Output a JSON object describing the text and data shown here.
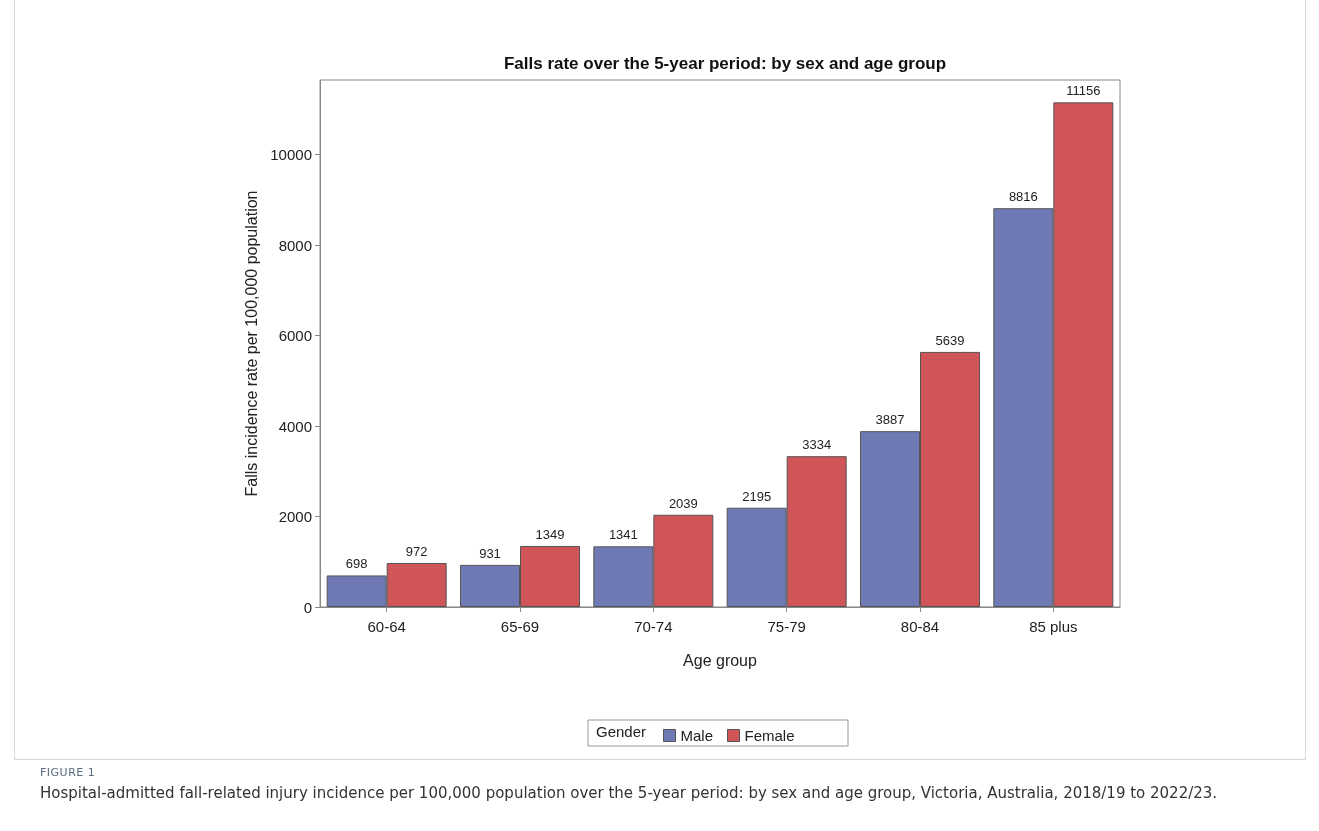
{
  "chart_data": {
    "type": "bar",
    "title": "Falls rate over the 5-year period: by sex and age group",
    "xlabel": "Age group",
    "ylabel": "Falls incidence rate per 100,000 population",
    "legend_title": "Gender",
    "annotations": [
      "FIGURE 1",
      "Hospital-admitted fall-related injury incidence per 100,000 population over the 5-year period: by sex and age group, Victoria, Australia, 2018/19 to 2022/23."
    ],
    "categories": [
      "60-64",
      "65-69",
      "70-74",
      "75-79",
      "80-84",
      "85 plus"
    ],
    "series": [
      {
        "name": "Male",
        "color": "#6f7ab5",
        "values": [
          698,
          931,
          1341,
          2195,
          3887,
          8816
        ]
      },
      {
        "name": "Female",
        "color": "#d05558",
        "values": [
          972,
          1349,
          2039,
          3334,
          5639,
          11156
        ]
      }
    ],
    "ylim": [
      0,
      11650
    ],
    "yticks": [
      0,
      2000,
      4000,
      6000,
      8000,
      10000
    ],
    "data_labels": true,
    "legend": "bottom",
    "grid": false
  }
}
